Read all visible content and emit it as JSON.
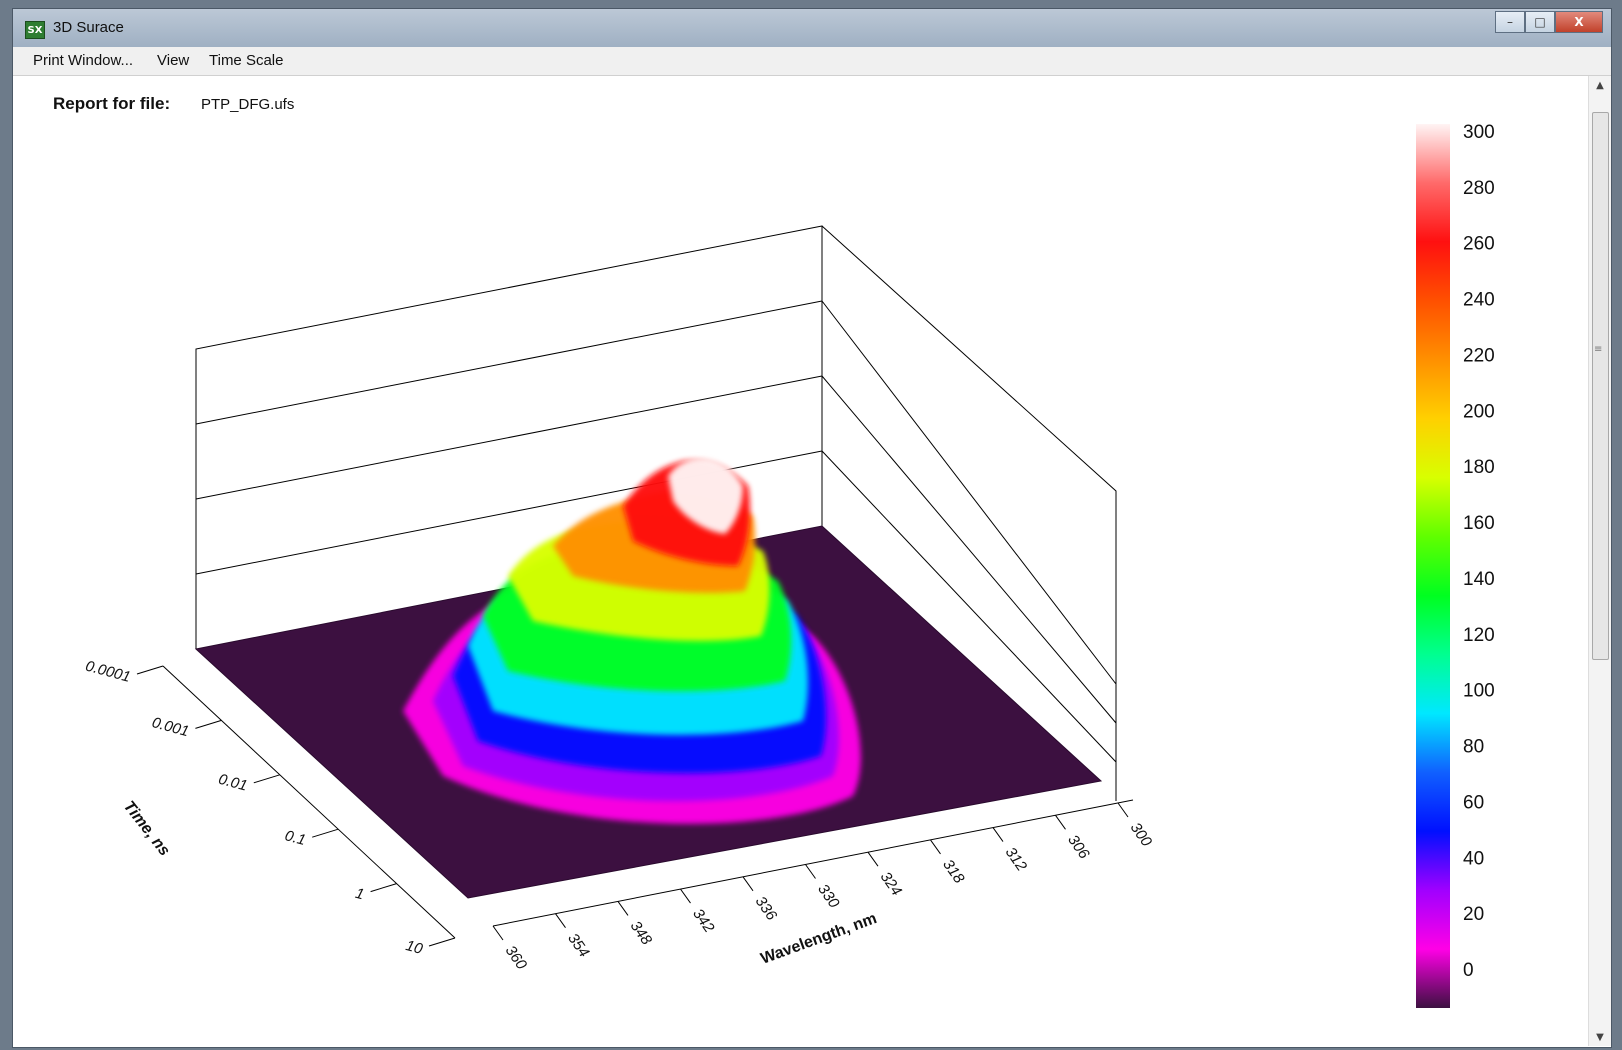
{
  "window": {
    "title": "3D Surace",
    "icon": "SX",
    "controls": {
      "minimize": "–",
      "maximize": "□",
      "close": "X"
    }
  },
  "menu": [
    {
      "label": "Print Window...",
      "accel": "P"
    },
    {
      "label": "View"
    },
    {
      "label": "Time Scale"
    }
  ],
  "report": {
    "label": "Report for file:",
    "filename": "PTP_DFG.ufs"
  },
  "chart_data": {
    "type": "surface3d",
    "x_axis": {
      "label": "Wavelength, nm",
      "ticks": [
        360,
        354,
        348,
        342,
        336,
        330,
        324,
        318,
        312,
        306,
        300
      ],
      "range": [
        360,
        300
      ]
    },
    "y_axis": {
      "label": "Time, ns",
      "ticks": [
        "0.0001",
        "0.001",
        "0.01",
        "0.1",
        "1",
        "10"
      ],
      "scale": "log",
      "range": [
        0.0001,
        10
      ]
    },
    "z_range": [
      0,
      300
    ],
    "peak": {
      "wavelength_nm": 330,
      "time_ns": 0.0001,
      "value": 300
    },
    "colorbar": {
      "ticks": [
        300,
        280,
        260,
        240,
        220,
        200,
        180,
        160,
        140,
        120,
        100,
        80,
        60,
        40,
        20,
        0
      ],
      "colors": {
        "0": "#3c1040",
        "20": "#ff00e6",
        "40": "#a000ff",
        "60": "#0010ff",
        "80": "#1060ff",
        "100": "#00e8ff",
        "120": "#00ff90",
        "140": "#00ff20",
        "160": "#60ff00",
        "180": "#d8ff00",
        "200": "#ffd000",
        "220": "#ff9000",
        "240": "#ff5000",
        "260": "#ff1010",
        "280": "#ff6a6a",
        "300": "#fff4f4"
      }
    }
  }
}
